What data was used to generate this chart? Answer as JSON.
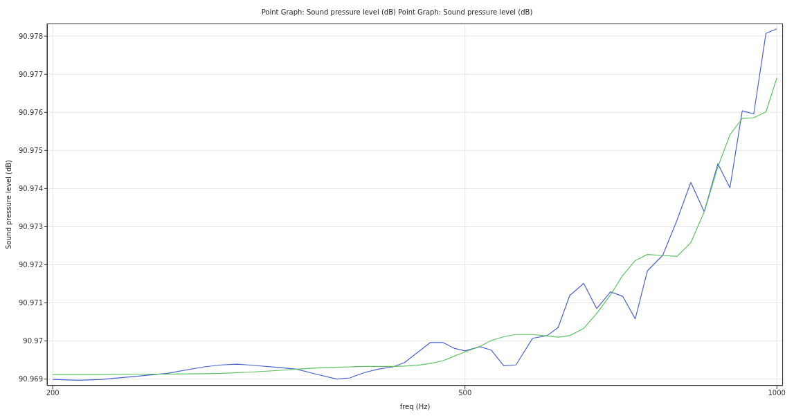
{
  "chart_data": {
    "type": "line",
    "title": "Point Graph: Sound pressure level (dB)  Point Graph: Sound pressure level (dB)",
    "xlabel": "freq (Hz)",
    "ylabel": "Sound pressure level (dB)",
    "x": [
      200,
      212,
      223,
      240,
      258,
      280,
      291,
      301,
      309,
      332,
      344,
      359,
      376,
      387,
      400,
      412,
      426,
      437,
      449,
      463,
      476,
      488,
      500,
      517,
      530,
      545,
      560,
      581,
      600,
      615,
      631,
      651,
      670,
      691,
      710,
      730,
      750,
      776,
      801,
      826,
      851,
      877,
      901,
      926,
      950,
      976,
      1000
    ],
    "series": [
      {
        "color": "#4862cf",
        "values": [
          90.96899,
          90.96897,
          90.96899,
          90.96907,
          90.96915,
          90.96932,
          90.96937,
          90.96939,
          90.96937,
          90.9693,
          90.96926,
          90.96913,
          90.969,
          90.96903,
          90.96917,
          90.96926,
          90.96932,
          90.96943,
          90.96968,
          90.96996,
          90.96996,
          90.96981,
          90.96974,
          90.96985,
          90.96976,
          90.96935,
          90.96937,
          90.97007,
          90.97014,
          90.97035,
          90.97119,
          90.97151,
          90.97085,
          90.97129,
          90.97117,
          90.97058,
          90.97184,
          90.97225,
          90.97317,
          90.97416,
          90.97339,
          90.97465,
          90.97402,
          90.97604,
          90.97596,
          90.97807,
          90.97819
        ]
      },
      {
        "color": "#5cc160",
        "values": [
          90.96912,
          90.96912,
          90.96912,
          90.96913,
          90.96913,
          90.96914,
          90.96915,
          90.96917,
          90.96918,
          90.96923,
          90.96926,
          90.96929,
          90.96931,
          90.96932,
          90.96933,
          90.96933,
          90.96933,
          90.96934,
          90.96936,
          90.96941,
          90.96948,
          90.9696,
          90.96971,
          90.96986,
          90.97001,
          90.97011,
          90.97017,
          90.97017,
          90.97013,
          90.9701,
          90.97014,
          90.97033,
          90.97072,
          90.97121,
          90.97172,
          90.97211,
          90.97227,
          90.97224,
          90.97222,
          90.97258,
          90.97339,
          90.97456,
          90.97541,
          90.97584,
          90.97586,
          90.97601,
          90.9769
        ]
      }
    ],
    "log": "x",
    "xlim": [
      197.5,
      1013.6
    ],
    "xticks": [
      200,
      500,
      1000
    ],
    "ylim": [
      90.96883,
      90.97833
    ],
    "yticks": [
      90.969,
      90.97,
      90.971,
      90.972,
      90.973,
      90.974,
      90.975,
      90.976,
      90.977,
      90.978
    ],
    "grid": true,
    "marker": "none",
    "line_style": "solid"
  }
}
